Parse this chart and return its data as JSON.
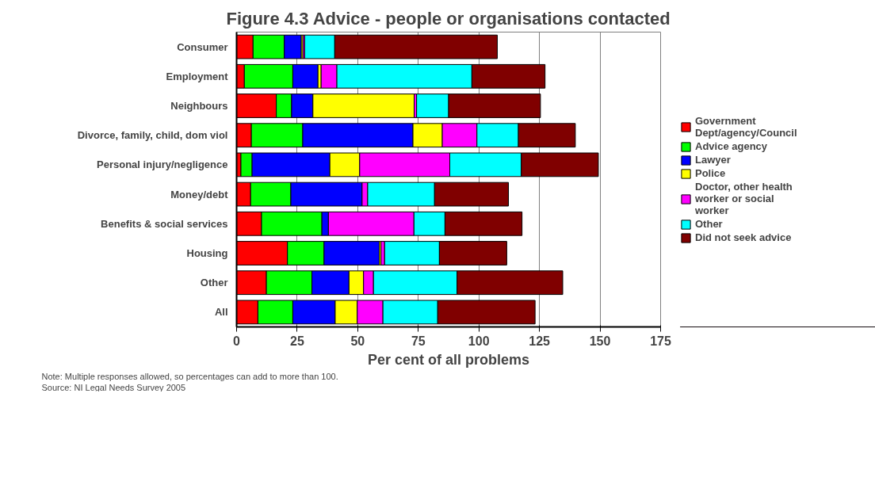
{
  "chart_data": {
    "type": "bar",
    "orientation": "horizontal",
    "stacked": true,
    "title": "Figure 4.3 Advice - people or organisations contacted",
    "xlabel": "Per cent of all problems",
    "categories": [
      "Consumer",
      "Employment",
      "Neighbours",
      "Divorce, family, child, dom viol",
      "Personal injury/negligence",
      "Money/debt",
      "Benefits & social services",
      "Housing",
      "Other",
      "All"
    ],
    "series": [
      {
        "name": "Government Dept/agency/Council",
        "color": "#ff0000",
        "values": [
          6.8,
          3.2,
          16.4,
          6.1,
          1.8,
          5.8,
          10.3,
          21.0,
          12.3,
          8.8
        ]
      },
      {
        "name": "Advice agency",
        "color": "#00ff00",
        "values": [
          12.9,
          20.0,
          6.3,
          21.2,
          4.6,
          16.6,
          24.9,
          15.1,
          18.8,
          14.4
        ]
      },
      {
        "name": "Lawyer",
        "color": "#0000ff",
        "values": [
          7.0,
          10.4,
          8.8,
          45.5,
          32.1,
          29.4,
          2.7,
          22.8,
          15.3,
          17.5
        ]
      },
      {
        "name": "Police",
        "color": "#ffff00",
        "values": [
          0.7,
          1.3,
          41.8,
          12.1,
          12.3,
          0,
          0,
          0.7,
          6.0,
          9.1
        ]
      },
      {
        "name": "Doctor, other health worker or social worker",
        "color": "#ff00ff",
        "values": [
          0.7,
          6.5,
          1.0,
          14.3,
          37.2,
          2.3,
          35.3,
          1.5,
          4.1,
          10.6
        ]
      },
      {
        "name": "Other",
        "color": "#00ffff",
        "values": [
          12.4,
          55.7,
          13.2,
          17.1,
          29.5,
          27.6,
          12.8,
          22.6,
          34.5,
          22.6
        ]
      },
      {
        "name": "Did not seek advice",
        "color": "#800000",
        "values": [
          67.1,
          30.2,
          37.9,
          23.5,
          31.8,
          30.5,
          31.8,
          27.8,
          43.6,
          40.2
        ]
      }
    ],
    "xlim": [
      0,
      175
    ],
    "xticks": [
      0,
      25,
      50,
      75,
      100,
      125,
      150,
      175
    ],
    "grid": "x",
    "legend": "right",
    "annotations": [
      "Note: Multiple responses allowed, so percentages can add to more than 100.",
      "Source: NI Legal Needs Survey 2005"
    ]
  }
}
